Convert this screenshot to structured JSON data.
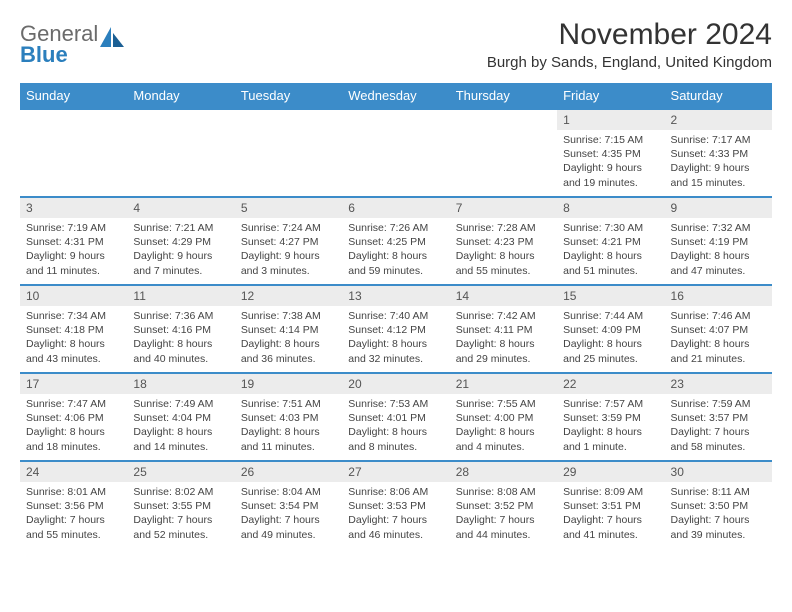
{
  "logo": {
    "word1": "General",
    "word2": "Blue"
  },
  "title": "November 2024",
  "subtitle": "Burgh by Sands, England, United Kingdom",
  "colors": {
    "header_bg": "#3c8cc9",
    "header_text": "#ffffff",
    "daynum_bg": "#ececec",
    "border": "#3c8cc9",
    "body_text": "#444444",
    "title_text": "#333333",
    "logo_gray": "#6b6b6b",
    "logo_blue": "#2b7fbd"
  },
  "day_names": [
    "Sunday",
    "Monday",
    "Tuesday",
    "Wednesday",
    "Thursday",
    "Friday",
    "Saturday"
  ],
  "weeks": [
    [
      null,
      null,
      null,
      null,
      null,
      {
        "n": "1",
        "sr": "7:15 AM",
        "ss": "4:35 PM",
        "dl": "9 hours and 19 minutes."
      },
      {
        "n": "2",
        "sr": "7:17 AM",
        "ss": "4:33 PM",
        "dl": "9 hours and 15 minutes."
      }
    ],
    [
      {
        "n": "3",
        "sr": "7:19 AM",
        "ss": "4:31 PM",
        "dl": "9 hours and 11 minutes."
      },
      {
        "n": "4",
        "sr": "7:21 AM",
        "ss": "4:29 PM",
        "dl": "9 hours and 7 minutes."
      },
      {
        "n": "5",
        "sr": "7:24 AM",
        "ss": "4:27 PM",
        "dl": "9 hours and 3 minutes."
      },
      {
        "n": "6",
        "sr": "7:26 AM",
        "ss": "4:25 PM",
        "dl": "8 hours and 59 minutes."
      },
      {
        "n": "7",
        "sr": "7:28 AM",
        "ss": "4:23 PM",
        "dl": "8 hours and 55 minutes."
      },
      {
        "n": "8",
        "sr": "7:30 AM",
        "ss": "4:21 PM",
        "dl": "8 hours and 51 minutes."
      },
      {
        "n": "9",
        "sr": "7:32 AM",
        "ss": "4:19 PM",
        "dl": "8 hours and 47 minutes."
      }
    ],
    [
      {
        "n": "10",
        "sr": "7:34 AM",
        "ss": "4:18 PM",
        "dl": "8 hours and 43 minutes."
      },
      {
        "n": "11",
        "sr": "7:36 AM",
        "ss": "4:16 PM",
        "dl": "8 hours and 40 minutes."
      },
      {
        "n": "12",
        "sr": "7:38 AM",
        "ss": "4:14 PM",
        "dl": "8 hours and 36 minutes."
      },
      {
        "n": "13",
        "sr": "7:40 AM",
        "ss": "4:12 PM",
        "dl": "8 hours and 32 minutes."
      },
      {
        "n": "14",
        "sr": "7:42 AM",
        "ss": "4:11 PM",
        "dl": "8 hours and 29 minutes."
      },
      {
        "n": "15",
        "sr": "7:44 AM",
        "ss": "4:09 PM",
        "dl": "8 hours and 25 minutes."
      },
      {
        "n": "16",
        "sr": "7:46 AM",
        "ss": "4:07 PM",
        "dl": "8 hours and 21 minutes."
      }
    ],
    [
      {
        "n": "17",
        "sr": "7:47 AM",
        "ss": "4:06 PM",
        "dl": "8 hours and 18 minutes."
      },
      {
        "n": "18",
        "sr": "7:49 AM",
        "ss": "4:04 PM",
        "dl": "8 hours and 14 minutes."
      },
      {
        "n": "19",
        "sr": "7:51 AM",
        "ss": "4:03 PM",
        "dl": "8 hours and 11 minutes."
      },
      {
        "n": "20",
        "sr": "7:53 AM",
        "ss": "4:01 PM",
        "dl": "8 hours and 8 minutes."
      },
      {
        "n": "21",
        "sr": "7:55 AM",
        "ss": "4:00 PM",
        "dl": "8 hours and 4 minutes."
      },
      {
        "n": "22",
        "sr": "7:57 AM",
        "ss": "3:59 PM",
        "dl": "8 hours and 1 minute."
      },
      {
        "n": "23",
        "sr": "7:59 AM",
        "ss": "3:57 PM",
        "dl": "7 hours and 58 minutes."
      }
    ],
    [
      {
        "n": "24",
        "sr": "8:01 AM",
        "ss": "3:56 PM",
        "dl": "7 hours and 55 minutes."
      },
      {
        "n": "25",
        "sr": "8:02 AM",
        "ss": "3:55 PM",
        "dl": "7 hours and 52 minutes."
      },
      {
        "n": "26",
        "sr": "8:04 AM",
        "ss": "3:54 PM",
        "dl": "7 hours and 49 minutes."
      },
      {
        "n": "27",
        "sr": "8:06 AM",
        "ss": "3:53 PM",
        "dl": "7 hours and 46 minutes."
      },
      {
        "n": "28",
        "sr": "8:08 AM",
        "ss": "3:52 PM",
        "dl": "7 hours and 44 minutes."
      },
      {
        "n": "29",
        "sr": "8:09 AM",
        "ss": "3:51 PM",
        "dl": "7 hours and 41 minutes."
      },
      {
        "n": "30",
        "sr": "8:11 AM",
        "ss": "3:50 PM",
        "dl": "7 hours and 39 minutes."
      }
    ]
  ],
  "labels": {
    "sunrise": "Sunrise:",
    "sunset": "Sunset:",
    "daylight": "Daylight:"
  }
}
